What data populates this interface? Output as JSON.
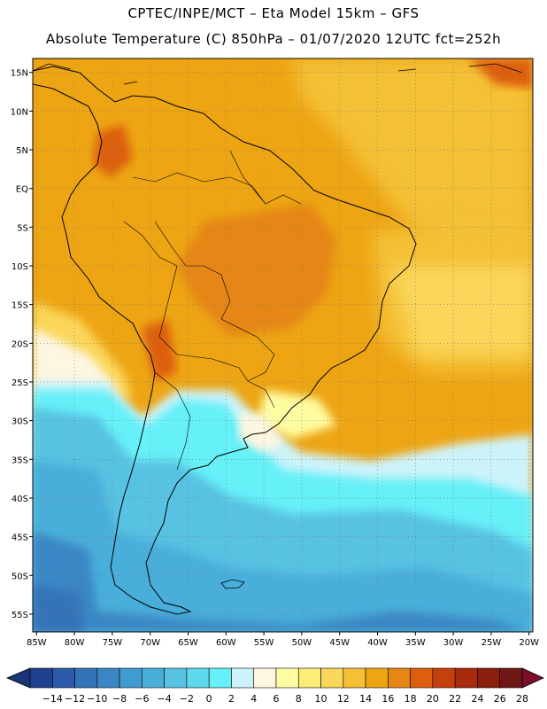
{
  "header": {
    "line1": "CPTEC/INPE/MCT –  Eta Model 15km – GFS",
    "line2": "Absolute Temperature (C) 850hPa – 01/07/2020 12UTC fct=252h"
  },
  "map": {
    "latitude_labels": [
      "15N",
      "10N",
      "5N",
      "EQ",
      "5S",
      "10S",
      "15S",
      "20S",
      "25S",
      "30S",
      "35S",
      "40S",
      "45S",
      "50S",
      "55S"
    ],
    "longitude_labels": [
      "85W",
      "80W",
      "75W",
      "70W",
      "65W",
      "60W",
      "55W",
      "50W",
      "45W",
      "40W",
      "35W",
      "30W",
      "25W",
      "20W"
    ],
    "lat_values": [
      15,
      10,
      5,
      0,
      -5,
      -10,
      -15,
      -20,
      -25,
      -30,
      -35,
      -40,
      -45,
      -50,
      -55
    ],
    "lon_values": [
      -85,
      -80,
      -75,
      -70,
      -65,
      -60,
      -55,
      -50,
      -45,
      -40,
      -35,
      -30,
      -25,
      -20
    ],
    "extent": {
      "lon_min": -85.5,
      "lon_max": -19.5,
      "lat_min": -57.3,
      "lat_max": 16.8
    }
  },
  "colorbar": {
    "labels": [
      "-14",
      "-12",
      "-10",
      "-8",
      "-6",
      "-4",
      "-2",
      "0",
      "2",
      "4",
      "6",
      "8",
      "10",
      "12",
      "14",
      "16",
      "18",
      "20",
      "22",
      "24",
      "26",
      "28"
    ],
    "colors": [
      "#1f3f8f",
      "#2a5aa8",
      "#3473b8",
      "#3a86c4",
      "#3f9bd0",
      "#4aaeda",
      "#58c2e2",
      "#5ed8ec",
      "#66f0f8",
      "#cdf3fa",
      "#fdf6e0",
      "#fefca0",
      "#fcec78",
      "#fad65a",
      "#f4c035",
      "#eda514",
      "#e58616",
      "#dd5e0f",
      "#c4400c",
      "#a82b0c",
      "#8a1f0e",
      "#6e1716"
    ],
    "under_color": "#1a3478",
    "over_color": "#7c0e2a"
  },
  "colors": {
    "ocean_south_cold": "#3a86c4",
    "ocean_cyan": "#58c2e2",
    "ocean_light": "#cdf3fa",
    "warm_land": "#eda514",
    "hot_land": "#e58616",
    "north_atlantic": "#f4c035"
  }
}
